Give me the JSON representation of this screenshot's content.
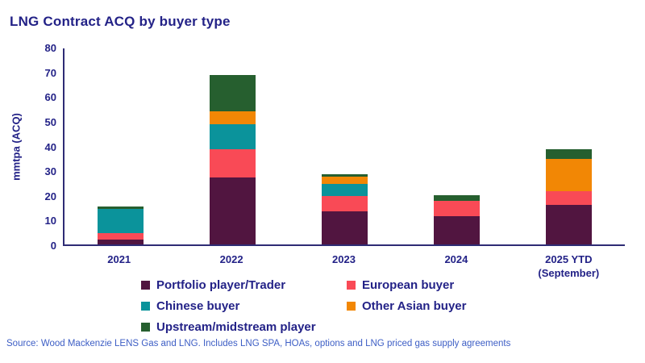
{
  "title": "LNG Contract ACQ by buyer type",
  "source": "Source: Wood Mackenzie LENS Gas and LNG. Includes LNG SPA, HOAs, options and LNG priced gas supply agreements",
  "colors": {
    "title_text": "#232287",
    "axis_text": "#232287",
    "axis_line": "#2e2c75",
    "source_text": "#3d5ec5",
    "background": "#ffffff"
  },
  "chart_data": {
    "type": "bar",
    "stacked": true,
    "title": "LNG Contract ACQ by buyer type",
    "xlabel": "",
    "ylabel": "mmtpa (ACQ)",
    "ylim": [
      0,
      80
    ],
    "yticks": [
      0,
      10,
      20,
      30,
      40,
      50,
      60,
      70,
      80
    ],
    "grid": false,
    "legend_position": "bottom",
    "categories": [
      "2021",
      "2022",
      "2023",
      "2024",
      "2025 YTD"
    ],
    "category_sublabels": [
      "",
      "",
      "",
      "",
      "(September)"
    ],
    "series": [
      {
        "name": "Portfolio player/Trader",
        "color": "#511540",
        "values": [
          2,
          27,
          13.5,
          11.5,
          16
        ]
      },
      {
        "name": "European buyer",
        "color": "#f94a56",
        "values": [
          2.5,
          11.5,
          6,
          6,
          5.5
        ]
      },
      {
        "name": "Chinese buyer",
        "color": "#0b939b",
        "values": [
          10,
          10,
          5,
          0,
          0
        ]
      },
      {
        "name": "Other Asian buyer",
        "color": "#f28705",
        "values": [
          0,
          5.5,
          3,
          0,
          13
        ]
      },
      {
        "name": "Upstream/midstream player",
        "color": "#265f2f",
        "values": [
          1,
          14.5,
          1,
          2.5,
          4
        ]
      }
    ],
    "totals": [
      15.5,
      68.5,
      28.5,
      20,
      38.5
    ]
  }
}
